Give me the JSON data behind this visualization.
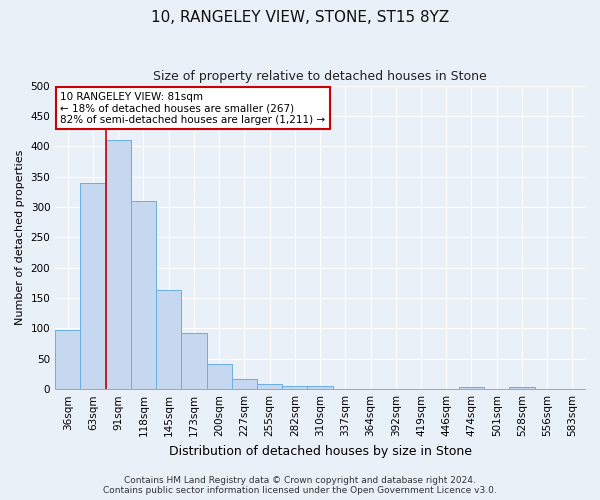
{
  "title": "10, RANGELEY VIEW, STONE, ST15 8YZ",
  "subtitle": "Size of property relative to detached houses in Stone",
  "xlabel": "Distribution of detached houses by size in Stone",
  "ylabel": "Number of detached properties",
  "categories": [
    "36sqm",
    "63sqm",
    "91sqm",
    "118sqm",
    "145sqm",
    "173sqm",
    "200sqm",
    "227sqm",
    "255sqm",
    "282sqm",
    "310sqm",
    "337sqm",
    "364sqm",
    "392sqm",
    "419sqm",
    "446sqm",
    "474sqm",
    "501sqm",
    "528sqm",
    "556sqm",
    "583sqm"
  ],
  "values": [
    97,
    340,
    410,
    310,
    163,
    93,
    41,
    16,
    9,
    6,
    6,
    0,
    0,
    0,
    0,
    0,
    4,
    0,
    4,
    0,
    0
  ],
  "bar_color": "#c5d8f0",
  "bar_edge_color": "#6aaee0",
  "ylim": [
    0,
    500
  ],
  "yticks": [
    0,
    50,
    100,
    150,
    200,
    250,
    300,
    350,
    400,
    450,
    500
  ],
  "vline_x_idx": 1.5,
  "vline_color": "#cc0000",
  "annotation_text": "10 RANGELEY VIEW: 81sqm\n← 18% of detached houses are smaller (267)\n82% of semi-detached houses are larger (1,211) →",
  "annotation_box_color": "#ffffff",
  "annotation_box_edge": "#cc0000",
  "footer_line1": "Contains HM Land Registry data © Crown copyright and database right 2024.",
  "footer_line2": "Contains public sector information licensed under the Open Government Licence v3.0.",
  "bg_color": "#eaf0f8",
  "plot_bg_color": "#eaf0f8",
  "grid_color": "#ffffff",
  "title_fontsize": 11,
  "subtitle_fontsize": 9,
  "ylabel_fontsize": 8,
  "xlabel_fontsize": 9,
  "tick_fontsize": 7.5,
  "footer_fontsize": 6.5
}
